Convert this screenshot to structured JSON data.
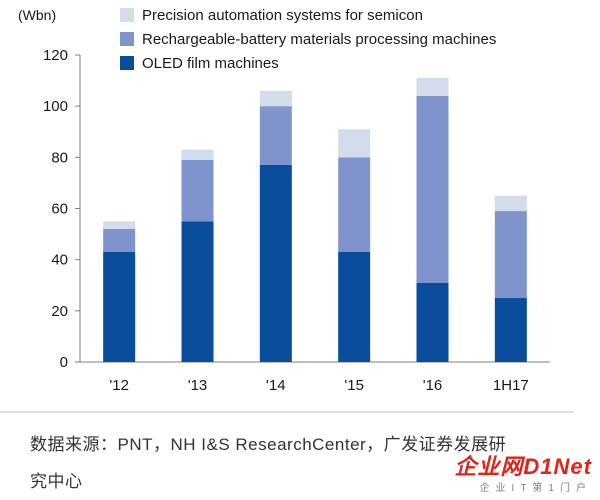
{
  "chart_data": {
    "type": "bar",
    "stacked": true,
    "unit": "(Wbn)",
    "categories": [
      "'12",
      "'13",
      "'14",
      "'15",
      "'16",
      "1H17"
    ],
    "ylim": [
      0,
      120
    ],
    "yticks": [
      0,
      20,
      40,
      60,
      80,
      100,
      120
    ],
    "legend_position": "top-right",
    "grid": false,
    "series": [
      {
        "name": "OLED film machines",
        "color": "#0a4d9c",
        "values": [
          43,
          55,
          77,
          43,
          31,
          25
        ]
      },
      {
        "name": "Rechargeable-battery materials processing machines",
        "color": "#7f94cc",
        "values": [
          9,
          24,
          23,
          37,
          73,
          34
        ]
      },
      {
        "name": "Precision automation systems for semicon",
        "color": "#d3dcea",
        "values": [
          3,
          4,
          6,
          11,
          7,
          6
        ]
      }
    ]
  },
  "source_note": {
    "line1": "数据来源：PNT，NH I&S ResearchCenter，广发证券发展研",
    "line2": "究中心"
  },
  "watermark": {
    "main": "企业网D1Net",
    "sub": "企业IT第1门户"
  }
}
